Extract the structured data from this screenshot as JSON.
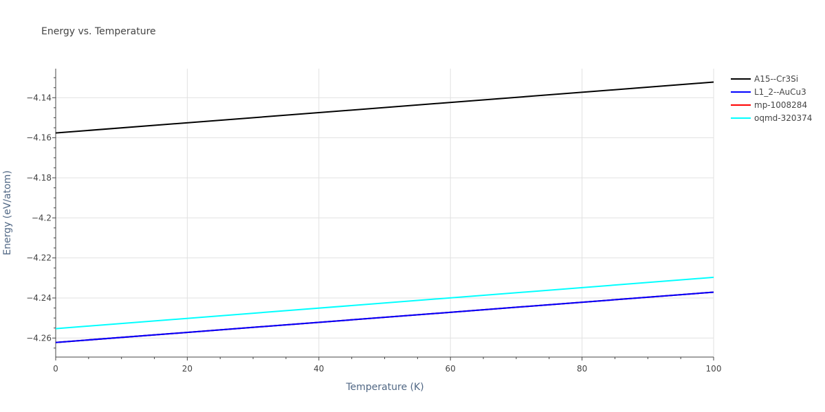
{
  "chart_data": {
    "type": "line",
    "title": "Energy vs. Temperature",
    "xlabel": "Temperature (K)",
    "ylabel": "Energy (eV/atom)",
    "xlim": [
      0,
      100
    ],
    "ylim": [
      -4.2695,
      -4.1255
    ],
    "x_ticks": [
      0,
      20,
      40,
      60,
      80,
      100
    ],
    "x_tick_labels": [
      "0",
      "20",
      "40",
      "60",
      "80",
      "100"
    ],
    "y_ticks": [
      -4.14,
      -4.16,
      -4.18,
      -4.2,
      -4.22,
      -4.24,
      -4.26
    ],
    "y_tick_labels": [
      "−4.14",
      "−4.16",
      "−4.18",
      "−4.2",
      "−4.22",
      "−4.24",
      "−4.26"
    ],
    "grid": true,
    "legend_position": "top-right",
    "series": [
      {
        "name": "A15--Cr3Si",
        "color": "#000000",
        "x": [
          0,
          100
        ],
        "y": [
          -4.1576,
          -4.1322
        ]
      },
      {
        "name": "L1_2--AuCu3",
        "color": "#0000ff",
        "x": [
          0,
          100
        ],
        "y": [
          -4.2622,
          -4.2371
        ]
      },
      {
        "name": "mp-1008284",
        "color": "#ff0000",
        "x": [
          0,
          100
        ],
        "y": [
          -4.2622,
          -4.2371
        ]
      },
      {
        "name": "oqmd-320374",
        "color": "#00ffff",
        "x": [
          0,
          100
        ],
        "y": [
          -4.2553,
          -4.2297
        ]
      }
    ]
  }
}
